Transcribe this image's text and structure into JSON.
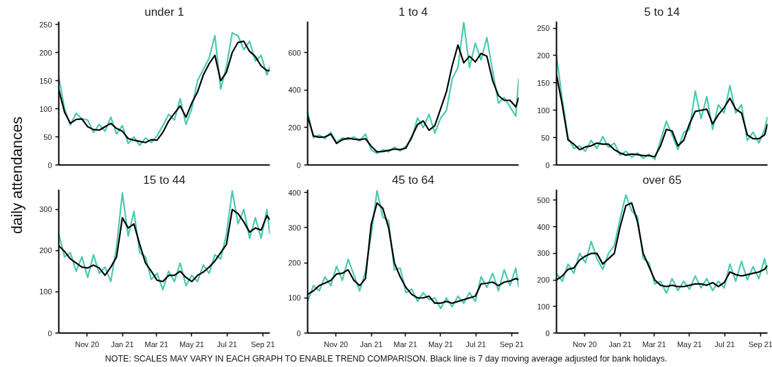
{
  "chart_data": [
    {
      "type": "line",
      "title": "under 1",
      "ylabel": "daily attendances",
      "annotations": [
        "NOTE: SCALES MAY VARY IN EACH GRAPH TO ENABLE TREND COMPARISON. Black line is 7 day moving average adjusted for bank holidays."
      ],
      "tick_labels": "y",
      "x": [
        "2020-09-13",
        "2020-09-23",
        "2020-10-03",
        "2020-10-13",
        "2020-10-23",
        "2020-11-02",
        "2020-11-12",
        "2020-11-22",
        "2020-12-02",
        "2020-12-12",
        "2020-12-22",
        "2021-01-01",
        "2021-01-11",
        "2021-01-21",
        "2021-01-31",
        "2021-02-10",
        "2021-02-20",
        "2021-03-02",
        "2021-03-12",
        "2021-03-22",
        "2021-04-01",
        "2021-04-11",
        "2021-04-21",
        "2021-05-01",
        "2021-05-11",
        "2021-05-21",
        "2021-05-31",
        "2021-06-10",
        "2021-06-20",
        "2021-06-30",
        "2021-07-10",
        "2021-07-20",
        "2021-07-30",
        "2021-08-09",
        "2021-08-19",
        "2021-08-29",
        "2021-09-08",
        "2021-09-13"
      ],
      "xlim": [
        "2020-09-13",
        "2021-09-13"
      ],
      "ylim": [
        0,
        255
      ],
      "yticks": [
        0,
        50,
        100,
        150,
        200,
        250
      ],
      "series": [
        {
          "color": "#48c9b0",
          "values": [
            156,
            100,
            71,
            92,
            82,
            80,
            58,
            72,
            60,
            85,
            55,
            70,
            38,
            50,
            35,
            48,
            40,
            52,
            70,
            90,
            80,
            118,
            72,
            100,
            150,
            170,
            190,
            230,
            135,
            175,
            235,
            230,
            205,
            220,
            185,
            195,
            160,
            175
          ]
        },
        {
          "color": "#000000",
          "values": [
            134,
            94,
            74,
            81,
            82,
            68,
            63,
            62,
            68,
            74,
            65,
            60,
            47,
            44,
            42,
            40,
            45,
            44,
            58,
            78,
            92,
            105,
            85,
            110,
            130,
            160,
            180,
            195,
            150,
            165,
            200,
            218,
            220,
            202,
            193,
            176,
            168,
            168
          ]
        }
      ]
    },
    {
      "type": "line",
      "title": "1 to 4",
      "tick_labels": "y",
      "x": [
        "2020-09-13",
        "2020-09-23",
        "2020-10-03",
        "2020-10-13",
        "2020-10-23",
        "2020-11-02",
        "2020-11-12",
        "2020-11-22",
        "2020-12-02",
        "2020-12-12",
        "2020-12-22",
        "2021-01-01",
        "2021-01-11",
        "2021-01-21",
        "2021-01-31",
        "2021-02-10",
        "2021-02-20",
        "2021-03-02",
        "2021-03-12",
        "2021-03-22",
        "2021-04-01",
        "2021-04-11",
        "2021-04-21",
        "2021-05-01",
        "2021-05-11",
        "2021-05-21",
        "2021-05-31",
        "2021-06-10",
        "2021-06-20",
        "2021-06-30",
        "2021-07-10",
        "2021-07-20",
        "2021-07-30",
        "2021-08-09",
        "2021-08-19",
        "2021-08-29",
        "2021-09-08",
        "2021-09-13"
      ],
      "xlim": [
        "2020-09-13",
        "2021-09-13"
      ],
      "ylim": [
        0,
        765
      ],
      "yticks": [
        0,
        200,
        400,
        600
      ],
      "series": [
        {
          "color": "#48c9b0",
          "values": [
            285,
            145,
            160,
            140,
            175,
            120,
            145,
            135,
            150,
            128,
            165,
            80,
            62,
            82,
            70,
            95,
            75,
            100,
            140,
            250,
            200,
            270,
            170,
            250,
            290,
            460,
            520,
            760,
            520,
            650,
            560,
            680,
            500,
            330,
            360,
            310,
            260,
            460
          ]
        },
        {
          "color": "#000000",
          "values": [
            260,
            155,
            148,
            150,
            165,
            115,
            135,
            143,
            138,
            135,
            140,
            100,
            70,
            72,
            78,
            85,
            82,
            90,
            150,
            215,
            235,
            185,
            210,
            300,
            390,
            530,
            640,
            545,
            580,
            550,
            595,
            580,
            450,
            370,
            345,
            345,
            310,
            360
          ]
        }
      ]
    },
    {
      "type": "line",
      "title": "5 to 14",
      "tick_labels": "y",
      "x": [
        "2020-09-13",
        "2020-09-23",
        "2020-10-03",
        "2020-10-13",
        "2020-10-23",
        "2020-11-02",
        "2020-11-12",
        "2020-11-22",
        "2020-12-02",
        "2020-12-12",
        "2020-12-22",
        "2021-01-01",
        "2021-01-11",
        "2021-01-21",
        "2021-01-31",
        "2021-02-10",
        "2021-02-20",
        "2021-03-02",
        "2021-03-12",
        "2021-03-22",
        "2021-04-01",
        "2021-04-11",
        "2021-04-21",
        "2021-05-01",
        "2021-05-11",
        "2021-05-21",
        "2021-05-31",
        "2021-06-10",
        "2021-06-20",
        "2021-06-30",
        "2021-07-10",
        "2021-07-20",
        "2021-07-30",
        "2021-08-09",
        "2021-08-19",
        "2021-08-29",
        "2021-09-08",
        "2021-09-13"
      ],
      "xlim": [
        "2020-09-13",
        "2021-09-13"
      ],
      "ylim": [
        0,
        262
      ],
      "yticks": [
        0,
        50,
        100,
        150,
        200,
        250
      ],
      "series": [
        {
          "color": "#48c9b0",
          "values": [
            200,
            120,
            50,
            30,
            35,
            25,
            45,
            30,
            52,
            32,
            40,
            18,
            25,
            14,
            22,
            12,
            20,
            10,
            45,
            80,
            55,
            28,
            60,
            65,
            135,
            85,
            125,
            65,
            110,
            95,
            145,
            95,
            110,
            45,
            60,
            40,
            65,
            88
          ]
        },
        {
          "color": "#000000",
          "values": [
            165,
            110,
            46,
            38,
            28,
            33,
            35,
            40,
            38,
            38,
            28,
            22,
            18,
            20,
            19,
            17,
            17,
            15,
            35,
            65,
            62,
            35,
            45,
            75,
            98,
            100,
            102,
            75,
            92,
            105,
            122,
            102,
            95,
            55,
            48,
            48,
            55,
            75
          ]
        }
      ]
    },
    {
      "type": "line",
      "title": "15 to 44",
      "x": [
        "2020-09-13",
        "2020-09-23",
        "2020-10-03",
        "2020-10-13",
        "2020-10-23",
        "2020-11-02",
        "2020-11-12",
        "2020-11-22",
        "2020-12-02",
        "2020-12-12",
        "2020-12-22",
        "2021-01-01",
        "2021-01-11",
        "2021-01-21",
        "2021-01-31",
        "2021-02-10",
        "2021-02-20",
        "2021-03-02",
        "2021-03-12",
        "2021-03-22",
        "2021-04-01",
        "2021-04-11",
        "2021-04-21",
        "2021-05-01",
        "2021-05-11",
        "2021-05-21",
        "2021-05-31",
        "2021-06-10",
        "2021-06-20",
        "2021-06-30",
        "2021-07-10",
        "2021-07-20",
        "2021-07-30",
        "2021-08-09",
        "2021-08-19",
        "2021-08-29",
        "2021-09-08",
        "2021-09-13"
      ],
      "xlim": [
        "2020-09-13",
        "2021-09-13"
      ],
      "ylim": [
        0,
        348
      ],
      "yticks": [
        0,
        100,
        200,
        300
      ],
      "xticks": [
        {
          "value": "2020-11-01",
          "label": "Nov 20"
        },
        {
          "value": "2021-01-01",
          "label": "Jan 21"
        },
        {
          "value": "2021-03-01",
          "label": "Mar 21"
        },
        {
          "value": "2021-05-01",
          "label": "May 21"
        },
        {
          "value": "2021-07-01",
          "label": "Jul 21"
        },
        {
          "value": "2021-09-01",
          "label": "Sep 21"
        }
      ],
      "series": [
        {
          "color": "#48c9b0",
          "values": [
            240,
            185,
            195,
            150,
            185,
            135,
            190,
            145,
            160,
            125,
            210,
            340,
            235,
            295,
            195,
            185,
            130,
            145,
            105,
            150,
            125,
            170,
            115,
            140,
            125,
            165,
            145,
            190,
            180,
            240,
            345,
            265,
            300,
            230,
            280,
            230,
            300,
            240
          ]
        },
        {
          "color": "#000000",
          "values": [
            212,
            198,
            180,
            170,
            160,
            158,
            165,
            158,
            140,
            160,
            185,
            280,
            255,
            265,
            215,
            170,
            150,
            128,
            125,
            140,
            140,
            150,
            135,
            125,
            140,
            148,
            160,
            175,
            195,
            215,
            300,
            290,
            270,
            245,
            255,
            250,
            285,
            275
          ]
        }
      ]
    },
    {
      "type": "line",
      "title": "45 to 64",
      "x": [
        "2020-09-13",
        "2020-09-23",
        "2020-10-03",
        "2020-10-13",
        "2020-10-23",
        "2020-11-02",
        "2020-11-12",
        "2020-11-22",
        "2020-12-02",
        "2020-12-12",
        "2020-12-22",
        "2021-01-01",
        "2021-01-11",
        "2021-01-21",
        "2021-01-31",
        "2021-02-10",
        "2021-02-20",
        "2021-03-02",
        "2021-03-12",
        "2021-03-22",
        "2021-04-01",
        "2021-04-11",
        "2021-04-21",
        "2021-05-01",
        "2021-05-11",
        "2021-05-21",
        "2021-05-31",
        "2021-06-10",
        "2021-06-20",
        "2021-06-30",
        "2021-07-10",
        "2021-07-20",
        "2021-07-30",
        "2021-08-09",
        "2021-08-19",
        "2021-08-29",
        "2021-09-08",
        "2021-09-13"
      ],
      "xlim": [
        "2020-09-13",
        "2021-09-13"
      ],
      "ylim": [
        0,
        408
      ],
      "yticks": [
        0,
        100,
        200,
        300,
        400
      ],
      "xticks": [
        {
          "value": "2020-11-01",
          "label": "Nov 20"
        },
        {
          "value": "2021-01-01",
          "label": "Jan 21"
        },
        {
          "value": "2021-03-01",
          "label": "Mar 21"
        },
        {
          "value": "2021-05-01",
          "label": "May 21"
        },
        {
          "value": "2021-07-01",
          "label": "Jul 21"
        },
        {
          "value": "2021-09-01",
          "label": "Sep 21"
        }
      ],
      "series": [
        {
          "color": "#48c9b0",
          "values": [
            90,
            135,
            120,
            160,
            135,
            190,
            150,
            210,
            165,
            120,
            175,
            280,
            405,
            330,
            320,
            180,
            185,
            115,
            125,
            90,
            115,
            95,
            100,
            70,
            100,
            75,
            105,
            85,
            115,
            90,
            160,
            130,
            170,
            120,
            180,
            135,
            185,
            130
          ]
        },
        {
          "color": "#000000",
          "values": [
            110,
            120,
            135,
            142,
            150,
            168,
            170,
            180,
            150,
            135,
            155,
            310,
            370,
            355,
            300,
            200,
            160,
            130,
            110,
            100,
            100,
            105,
            85,
            85,
            90,
            85,
            90,
            95,
            100,
            105,
            140,
            142,
            145,
            135,
            145,
            148,
            155,
            152
          ]
        }
      ]
    },
    {
      "type": "line",
      "title": "over 65",
      "x": [
        "2020-09-13",
        "2020-09-23",
        "2020-10-03",
        "2020-10-13",
        "2020-10-23",
        "2020-11-02",
        "2020-11-12",
        "2020-11-22",
        "2020-12-02",
        "2020-12-12",
        "2020-12-22",
        "2021-01-01",
        "2021-01-11",
        "2021-01-21",
        "2021-01-31",
        "2021-02-10",
        "2021-02-20",
        "2021-03-02",
        "2021-03-12",
        "2021-03-22",
        "2021-04-01",
        "2021-04-11",
        "2021-04-21",
        "2021-05-01",
        "2021-05-11",
        "2021-05-21",
        "2021-05-31",
        "2021-06-10",
        "2021-06-20",
        "2021-06-30",
        "2021-07-10",
        "2021-07-20",
        "2021-07-30",
        "2021-08-09",
        "2021-08-19",
        "2021-08-29",
        "2021-09-08",
        "2021-09-13"
      ],
      "xlim": [
        "2020-09-13",
        "2021-09-13"
      ],
      "ylim": [
        0,
        540
      ],
      "yticks": [
        0,
        100,
        200,
        300,
        400,
        500
      ],
      "xticks": [
        {
          "value": "2020-11-01",
          "label": "Nov 20"
        },
        {
          "value": "2021-01-01",
          "label": "Jan 21"
        },
        {
          "value": "2021-03-01",
          "label": "Mar 21"
        },
        {
          "value": "2021-05-01",
          "label": "May 21"
        },
        {
          "value": "2021-07-01",
          "label": "Jul 21"
        },
        {
          "value": "2021-09-01",
          "label": "Sep 21"
        }
      ],
      "series": [
        {
          "color": "#48c9b0",
          "values": [
            225,
            195,
            260,
            225,
            300,
            265,
            345,
            280,
            240,
            300,
            330,
            430,
            520,
            460,
            440,
            280,
            265,
            185,
            195,
            150,
            205,
            160,
            195,
            165,
            215,
            170,
            205,
            160,
            195,
            170,
            260,
            195,
            270,
            200,
            250,
            205,
            280,
            220
          ]
        },
        {
          "color": "#000000",
          "values": [
            200,
            215,
            240,
            245,
            275,
            290,
            300,
            300,
            260,
            280,
            300,
            400,
            480,
            490,
            420,
            300,
            250,
            200,
            180,
            175,
            180,
            175,
            175,
            180,
            185,
            185,
            180,
            190,
            175,
            190,
            230,
            220,
            215,
            220,
            225,
            230,
            240,
            255
          ]
        }
      ]
    }
  ]
}
